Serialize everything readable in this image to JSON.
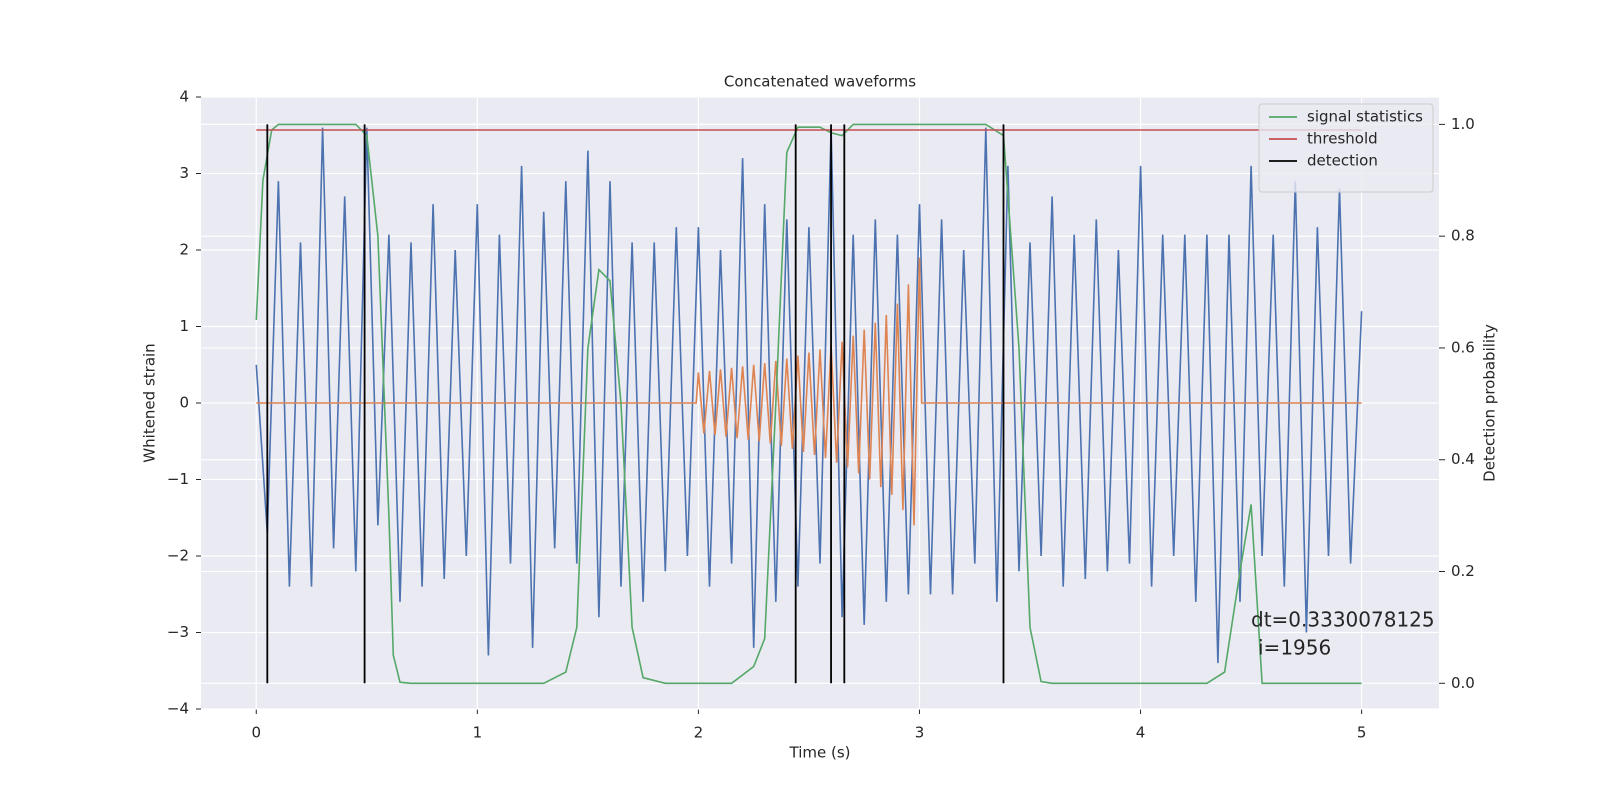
{
  "chart_data": {
    "type": "line",
    "title": "Concatenated waveforms",
    "xlabel": "Time (s)",
    "ylabel": "Whitened strain",
    "y2label": "Detection probability",
    "xlim": [
      -0.25,
      5.35
    ],
    "ylim": [
      -4,
      4
    ],
    "y2lim": [
      -0.046,
      1.049
    ],
    "xticks": [
      0,
      1,
      2,
      3,
      4,
      5
    ],
    "yticks": [
      {
        "value": -4,
        "label": "−4"
      },
      {
        "value": -3,
        "label": "−3"
      },
      {
        "value": -2,
        "label": "−2"
      },
      {
        "value": -1,
        "label": "−1"
      },
      0,
      1,
      2,
      3,
      4
    ],
    "y2ticks": [
      {
        "value": 0,
        "label": "0.0"
      },
      {
        "value": 0.2,
        "label": "0.2"
      },
      {
        "value": 0.4,
        "label": "0.4"
      },
      {
        "value": 0.6,
        "label": "0.6"
      },
      {
        "value": 0.8,
        "label": "0.8"
      },
      {
        "value": 1,
        "label": "1.0"
      }
    ],
    "grid": true,
    "legend": "upper right",
    "series": [
      {
        "color": "#4c72b0",
        "x": [
          0,
          0.05,
          0.1,
          0.15,
          0.2,
          0.25,
          0.3,
          0.35,
          0.4,
          0.45,
          0.5,
          0.55,
          0.6,
          0.65,
          0.7,
          0.75,
          0.8,
          0.85,
          0.9,
          0.95,
          1,
          1.05,
          1.1,
          1.15,
          1.2,
          1.25,
          1.3,
          1.35,
          1.4,
          1.45,
          1.5,
          1.55,
          1.6,
          1.65,
          1.7,
          1.75,
          1.8,
          1.85,
          1.9,
          1.95,
          2,
          2.05,
          2.1,
          2.15,
          2.2,
          2.25,
          2.3,
          2.35,
          2.4,
          2.45,
          2.5,
          2.55,
          2.6,
          2.65,
          2.7,
          2.75,
          2.8,
          2.85,
          2.9,
          2.95,
          3,
          3.05,
          3.1,
          3.15,
          3.2,
          3.25,
          3.3,
          3.35,
          3.4,
          3.45,
          3.5,
          3.55,
          3.6,
          3.65,
          3.7,
          3.75,
          3.8,
          3.85,
          3.9,
          3.95,
          4,
          4.05,
          4.1,
          4.15,
          4.2,
          4.25,
          4.3,
          4.35,
          4.4,
          4.45,
          4.5,
          4.55,
          4.6,
          4.65,
          4.7,
          4.75,
          4.8,
          4.85,
          4.9,
          4.95,
          5
        ],
        "values": [
          0.5,
          -1.7,
          2.9,
          -2.4,
          2.1,
          -2.4,
          3.6,
          -1.9,
          2.7,
          -2.2,
          3.6,
          -1.6,
          2.2,
          -2.6,
          2.1,
          -2.4,
          2.6,
          -2.3,
          2.0,
          -2.0,
          2.6,
          -3.3,
          2.2,
          -2.1,
          3.1,
          -3.2,
          2.5,
          -1.9,
          2.9,
          -2.1,
          3.3,
          -2.8,
          2.9,
          -2.4,
          2.1,
          -2.6,
          2.1,
          -2.2,
          2.3,
          -2.0,
          2.3,
          -2.4,
          2.0,
          -2.1,
          3.2,
          -3.2,
          2.6,
          -2.6,
          2.4,
          -2.4,
          2.3,
          -2.1,
          3.6,
          -2.8,
          2.2,
          -2.9,
          2.4,
          -2.6,
          2.2,
          -2.5,
          2.6,
          -2.5,
          2.4,
          -2.5,
          2.0,
          -2.1,
          3.6,
          -2.6,
          3.1,
          -2.2,
          2.1,
          -2.0,
          2.7,
          -2.4,
          2.2,
          -2.3,
          2.4,
          -2.2,
          2.0,
          -2.1,
          3.1,
          -2.4,
          2.2,
          -2.0,
          2.2,
          -2.6,
          2.2,
          -3.4,
          2.2,
          -2.6,
          3.1,
          -2.0,
          2.2,
          -2.4,
          2.9,
          -3.0,
          2.3,
          -2.0,
          2.8,
          -2.1,
          1.2
        ]
      },
      {
        "color": "#dd8452",
        "x": [
          0,
          1.99,
          2,
          2.025,
          2.05,
          2.075,
          2.1,
          2.125,
          2.15,
          2.175,
          2.2,
          2.225,
          2.25,
          2.275,
          2.3,
          2.325,
          2.35,
          2.375,
          2.4,
          2.425,
          2.45,
          2.475,
          2.5,
          2.525,
          2.55,
          2.575,
          2.6,
          2.625,
          2.65,
          2.675,
          2.7,
          2.725,
          2.75,
          2.775,
          2.8,
          2.825,
          2.85,
          2.875,
          2.9,
          2.925,
          2.95,
          2.975,
          3,
          3.01,
          5
        ],
        "values": [
          0,
          0,
          0.4,
          -0.4,
          0.42,
          -0.42,
          0.44,
          -0.44,
          0.46,
          -0.46,
          0.48,
          -0.48,
          0.5,
          -0.5,
          0.52,
          -0.53,
          0.55,
          -0.56,
          0.58,
          -0.6,
          0.62,
          -0.64,
          0.66,
          -0.68,
          0.7,
          -0.72,
          0.75,
          -0.78,
          0.8,
          -0.84,
          0.88,
          -0.92,
          0.96,
          -1.0,
          1.05,
          -1.1,
          1.15,
          -1.2,
          1.3,
          -1.4,
          1.55,
          -1.6,
          1.9,
          0,
          0
        ]
      },
      {
        "name": "signal statistics",
        "color": "#55a868",
        "axis": "y2",
        "x": [
          0,
          0.03,
          0.07,
          0.1,
          0.45,
          0.5,
          0.55,
          0.6,
          0.62,
          0.65,
          0.7,
          1.3,
          1.4,
          1.45,
          1.5,
          1.55,
          1.6,
          1.65,
          1.7,
          1.75,
          1.85,
          2.15,
          2.25,
          2.3,
          2.35,
          2.4,
          2.45,
          2.55,
          2.6,
          2.65,
          2.7,
          3.3,
          3.38,
          3.45,
          3.5,
          3.55,
          3.6,
          4.3,
          4.38,
          4.45,
          4.5,
          4.55,
          5
        ],
        "values": [
          0.65,
          0.9,
          0.99,
          1.0,
          1.0,
          0.98,
          0.8,
          0.3,
          0.05,
          0.002,
          0,
          0,
          0.02,
          0.1,
          0.6,
          0.74,
          0.72,
          0.5,
          0.1,
          0.01,
          0,
          0,
          0.03,
          0.08,
          0.5,
          0.95,
          0.995,
          0.995,
          0.985,
          0.98,
          1.0,
          1.0,
          0.98,
          0.6,
          0.1,
          0.003,
          0,
          0,
          0.02,
          0.2,
          0.32,
          0,
          0
        ]
      },
      {
        "name": "threshold",
        "color": "#c44e52",
        "axis": "y2",
        "x": [
          0,
          5
        ],
        "values": [
          0.99,
          0.99
        ]
      },
      {
        "name": "detection",
        "color": "#000000",
        "axis": "y2",
        "type": "vline",
        "span": [
          0,
          1
        ],
        "x": [
          0.05,
          0.49,
          2.44,
          2.6,
          2.66,
          3.38
        ]
      }
    ],
    "annotations": [
      "dt=0.3330078125",
      "i=1956"
    ]
  }
}
